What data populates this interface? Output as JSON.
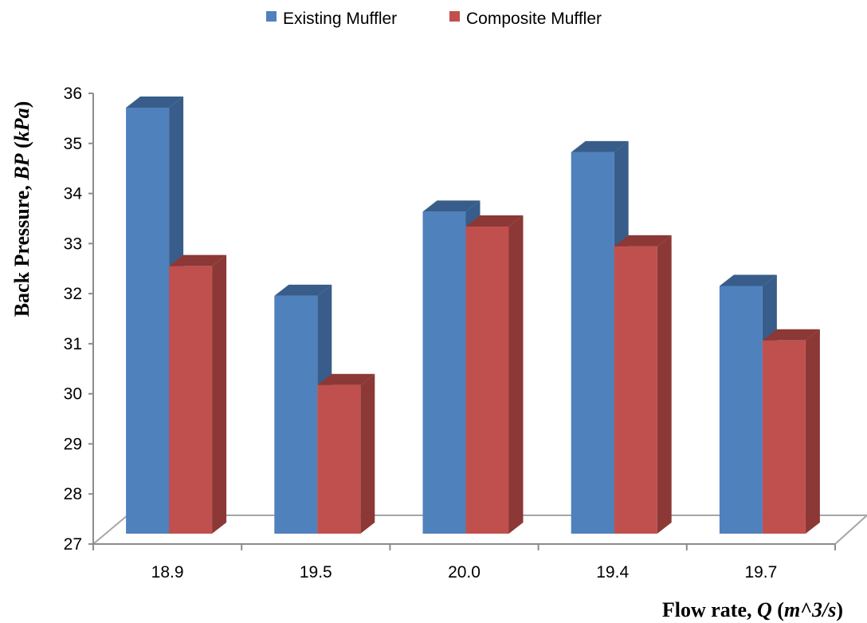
{
  "chart_data": {
    "type": "bar",
    "style": "3d-clustered-column",
    "categories": [
      "18.9",
      "19.5",
      "20.0",
      "19.4",
      "19.7"
    ],
    "series": [
      {
        "name": "Existing Muffler",
        "values": [
          35.6,
          31.8,
          33.5,
          34.7,
          32.0
        ],
        "color": "#4F81BD",
        "side_color": "#385D8A"
      },
      {
        "name": "Composite Muffler",
        "values": [
          32.4,
          30.0,
          33.2,
          32.8,
          30.9
        ],
        "color": "#C0504D",
        "side_color": "#8C3836"
      }
    ],
    "xlabel_prefix": "Flow  rate, ",
    "xlabel_symbol": "Q",
    "xlabel_unit_open": " (",
    "xlabel_unit": "m^3/s",
    "xlabel_unit_close": ")",
    "ylabel_prefix": "Back Pressure, ",
    "ylabel_symbol": "BP",
    "ylabel_unit_open": " (",
    "ylabel_unit": "kPa",
    "ylabel_unit_close": ")",
    "ylim": [
      27,
      36
    ],
    "yticks": [
      "27",
      "28",
      "29",
      "30",
      "31",
      "32",
      "33",
      "34",
      "35",
      "36"
    ],
    "legend_position": "top-center",
    "grid": false
  }
}
